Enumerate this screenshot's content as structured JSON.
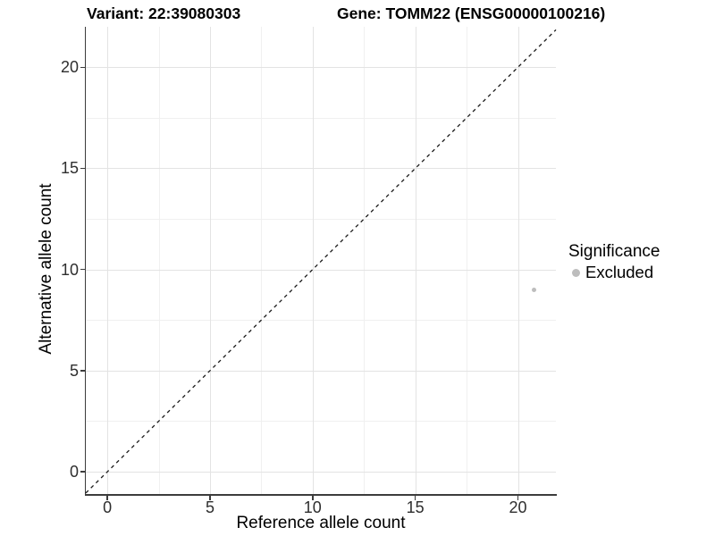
{
  "figure": {
    "title_variant": "Variant: 22:39080303",
    "title_gene": "Gene: TOMM22 (ENSG00000100216)"
  },
  "chart_data": {
    "type": "scatter",
    "title": "Variant: 22:39080303    Gene: TOMM22 (ENSG00000100216)",
    "xlabel": "Reference allele count",
    "ylabel": "Alternative allele count",
    "xlim": [
      -1.05,
      21.85
    ],
    "ylim": [
      -1.1,
      22.0
    ],
    "x_ticks": [
      0,
      5,
      10,
      15,
      20
    ],
    "y_ticks": [
      0,
      5,
      10,
      15,
      20
    ],
    "x_minor_gridlines": [
      2.5,
      7.5,
      12.5,
      17.5
    ],
    "y_minor_gridlines": [
      2.5,
      7.5,
      12.5,
      17.5
    ],
    "grid": "major and minor gridlines, no panel border",
    "identity_line": {
      "equation": "y = x",
      "style": "dashed",
      "color": "#1a1a1a"
    },
    "series": [
      {
        "name": "Excluded",
        "color": "#bdbdbd",
        "points": [
          {
            "x": 20.8,
            "y": 9
          }
        ]
      }
    ],
    "legend": {
      "title": "Significance",
      "position": "right",
      "entries": [
        {
          "label": "Excluded",
          "color": "#bdbdbd"
        }
      ]
    },
    "colors": {
      "background": "#ffffff",
      "axis_line": "#3c3c3c",
      "tick_label": "#2e2e2e",
      "major_gridline": "#e3e3e3",
      "minor_gridline": "#f0f0f0"
    }
  }
}
